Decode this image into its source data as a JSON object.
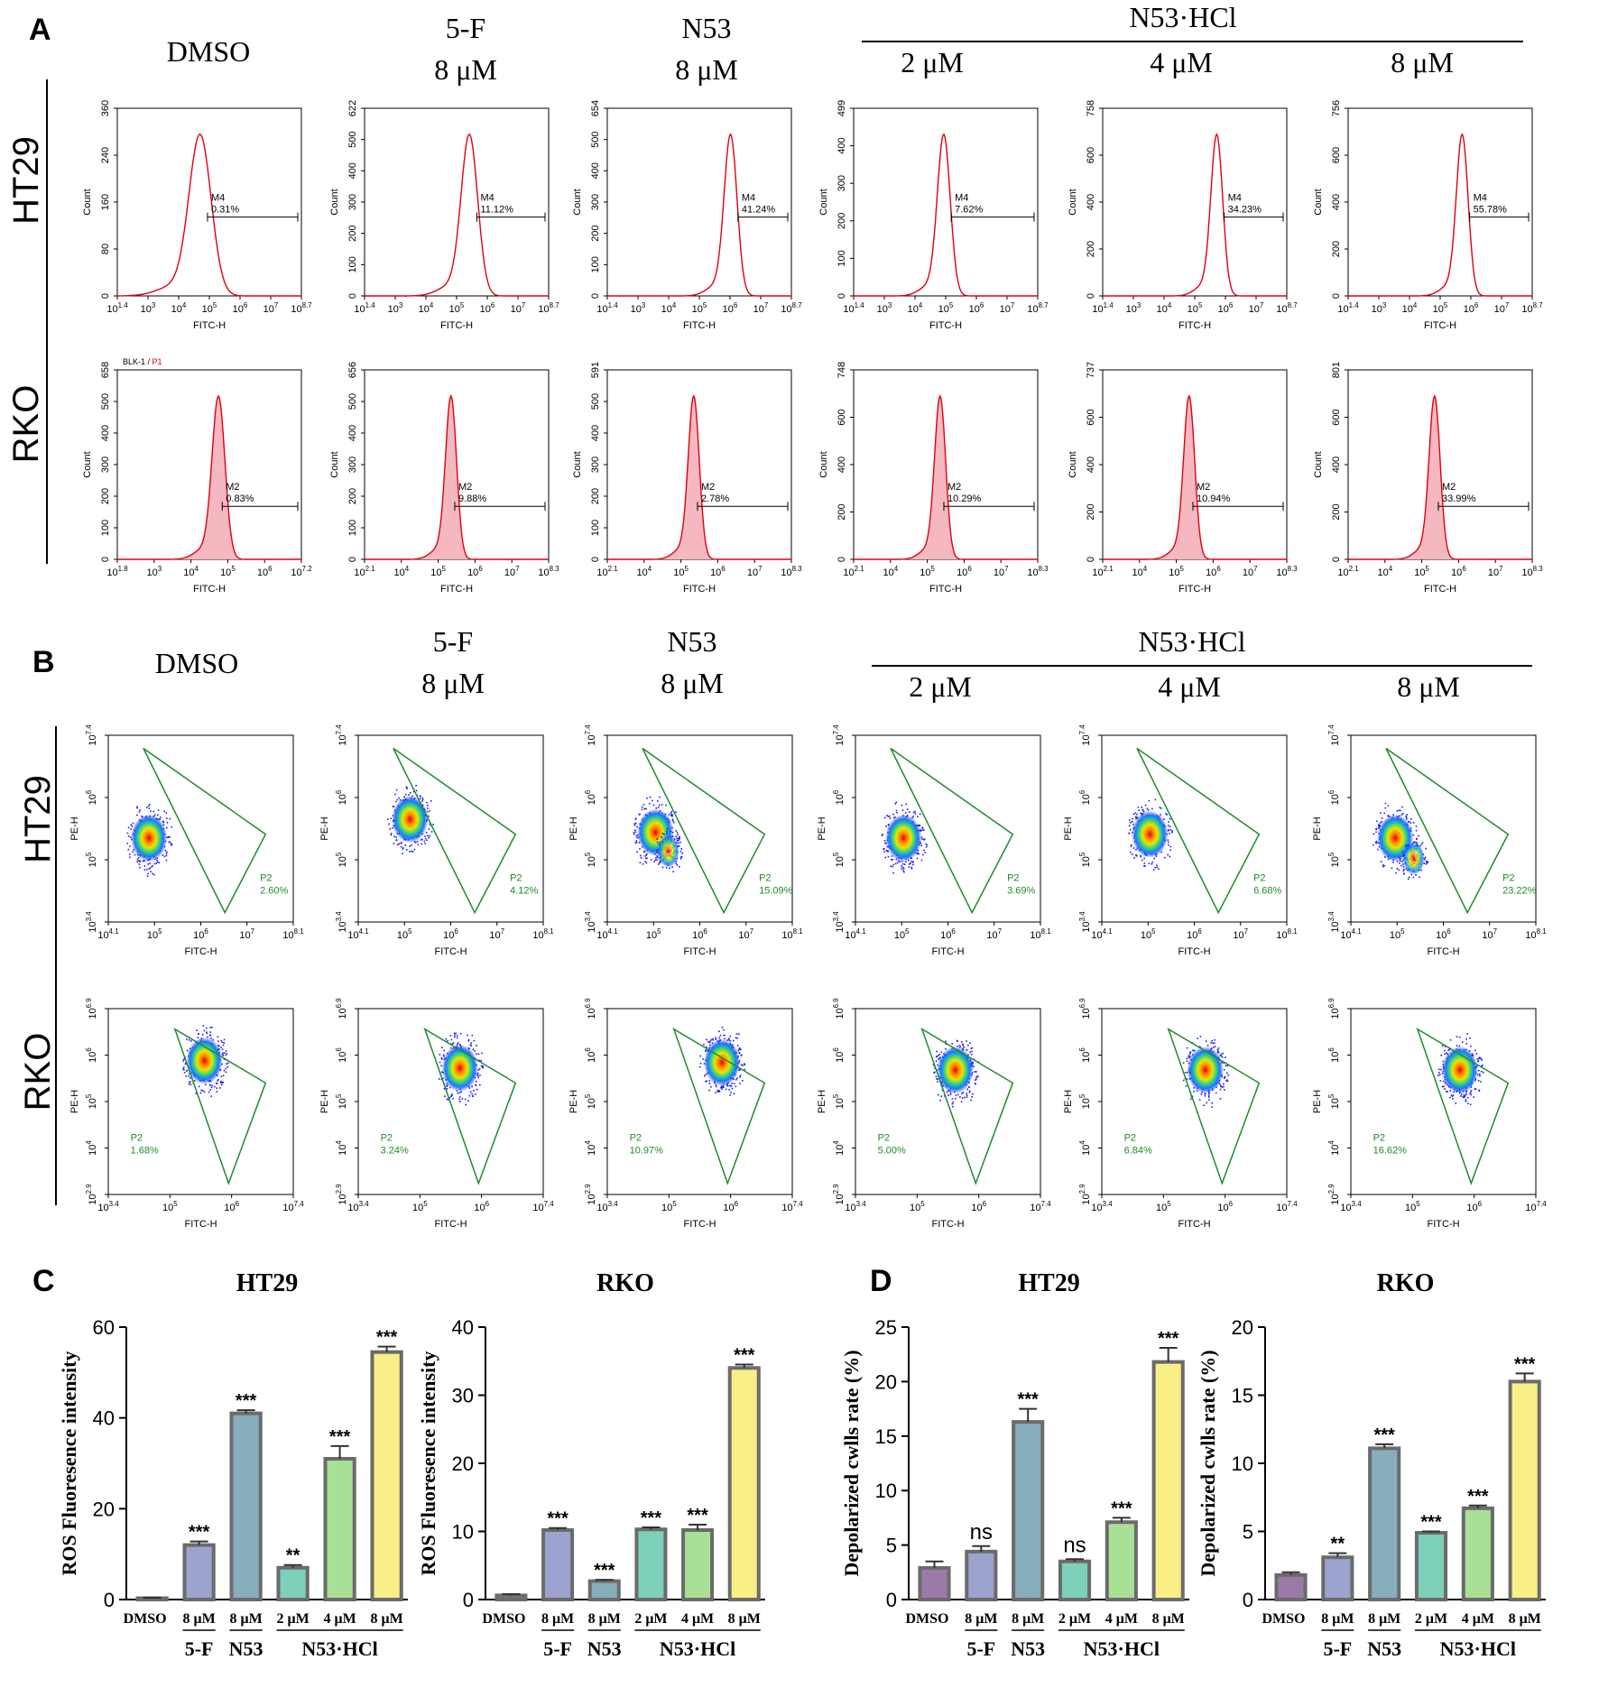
{
  "panel_letters": {
    "A": "A",
    "B": "B",
    "C": "C",
    "D": "D"
  },
  "colors": {
    "histogram_line": "#e0000f",
    "histogram_fill": "#f6b8c0",
    "gate_green": "#1e8c2a",
    "bar_colors": [
      "#9b7aa8",
      "#9da3cf",
      "#86aebc",
      "#7dd0b9",
      "#a8e095",
      "#f8ef86"
    ],
    "bar_border": "#6b6b6b"
  },
  "treatments": {
    "dmso": "DMSO",
    "fivef_name": "5-F",
    "fivef_dose": "8 μM",
    "n53_name": "N53",
    "n53_dose": "8 μM",
    "hcl_name": "N53·HCl",
    "hcl_doses": [
      "2 μM",
      "4 μM",
      "8 μM"
    ]
  },
  "cell_lines": [
    "HT29",
    "RKO"
  ],
  "panel_A": {
    "ht29": {
      "y_max": [
        "360",
        "622",
        "654",
        "499",
        "758",
        "756"
      ],
      "y_ticks": [
        [
          "0",
          "80",
          "160",
          "240",
          "360"
        ],
        [
          "0",
          "100",
          "200",
          "300",
          "400",
          "500",
          "622"
        ],
        [
          "0",
          "100",
          "200",
          "300",
          "400",
          "500",
          "654"
        ],
        [
          "0",
          "100",
          "200",
          "300",
          "400",
          "499"
        ],
        [
          "0",
          "200",
          "400",
          "600",
          "758"
        ],
        [
          "0",
          "200",
          "400",
          "600",
          "756"
        ]
      ],
      "x_ticks": [
        "10^1.4",
        "10^3",
        "10^4",
        "10^5",
        "10^6",
        "10^7",
        "10^8.7"
      ],
      "gate_name": "M4",
      "gate_pct": [
        "0.31%",
        "11.12%",
        "41.24%",
        "7.62%",
        "34.23%",
        "55.78%"
      ]
    },
    "rko": {
      "y_ticks": [
        [
          "0",
          "100",
          "200",
          "300",
          "400",
          "500",
          "658"
        ],
        [
          "0",
          "100",
          "200",
          "300",
          "400",
          "500",
          "656"
        ],
        [
          "0",
          "100",
          "200",
          "300",
          "400",
          "500",
          "591"
        ],
        [
          "0",
          "200",
          "400",
          "600",
          "748"
        ],
        [
          "0",
          "200",
          "400",
          "600",
          "737"
        ],
        [
          "0",
          "200",
          "400",
          "600",
          "801"
        ]
      ],
      "x_ticks_first": [
        "10^1.8",
        "10^3",
        "10^4",
        "10^5",
        "10^6",
        "10^7.2"
      ],
      "x_ticks": [
        "10^2.1",
        "10^4",
        "10^5",
        "10^6",
        "10^7",
        "10^8.3"
      ],
      "gate_name": "M2",
      "gate_pct": [
        "0.83%",
        "9.88%",
        "2.78%",
        "10.29%",
        "10.94%",
        "33.99%"
      ],
      "first_title_black": "BLK-1 / ",
      "first_title_red": "P1"
    },
    "x_label": "FITC-H",
    "y_label": "Count"
  },
  "panel_B": {
    "ht29": {
      "y_ticks": [
        "10^3.4",
        "10^5",
        "10^6",
        "10^7.4"
      ],
      "x_ticks": [
        "10^4.1",
        "10^5",
        "10^6",
        "10^7",
        "10^8.1"
      ],
      "gate_pct": [
        "2.60%",
        "4.12%",
        "15.09%",
        "3.69%",
        "6.68%",
        "23.22%"
      ]
    },
    "rko": {
      "y_ticks": [
        "10^2.9",
        "10^4",
        "10^5",
        "10^6",
        "10^6.9"
      ],
      "x_ticks": [
        "10^3.4",
        "10^5",
        "10^6",
        "10^7.4"
      ],
      "gate_pct": [
        "1.68%",
        "3.24%",
        "10.97%",
        "5.00%",
        "6.84%",
        "16.62%"
      ]
    },
    "gate_name": "P2",
    "x_label": "FITC-H",
    "y_label": "PE-H"
  },
  "chart_data": [
    {
      "type": "bar",
      "panel": "C",
      "title": "HT29",
      "ylabel": "ROS Fluoresence intensity",
      "ylim": [
        0,
        60
      ],
      "yticks": [
        "0",
        "20",
        "40",
        "60"
      ],
      "categories": [
        "DMSO",
        "8 μM",
        "8 μM",
        "2 μM",
        "4 μM",
        "8 μM"
      ],
      "groups": [
        "5-F",
        "N53",
        "N53·HCl"
      ],
      "values": [
        0.3,
        12.0,
        41.0,
        7.0,
        31.0,
        54.5
      ],
      "errors": [
        0.1,
        0.8,
        0.7,
        0.6,
        2.8,
        1.2
      ],
      "significance": [
        "",
        "***",
        "***",
        "**",
        "***",
        "***"
      ]
    },
    {
      "type": "bar",
      "panel": "C",
      "title": "RKO",
      "ylabel": "ROS Fluoresence intensity",
      "ylim": [
        0,
        40
      ],
      "yticks": [
        "0",
        "10",
        "20",
        "30",
        "40"
      ],
      "categories": [
        "DMSO",
        "8 μM",
        "8 μM",
        "2 μM",
        "4 μM",
        "8 μM"
      ],
      "groups": [
        "5-F",
        "N53",
        "N53·HCl"
      ],
      "values": [
        0.6,
        10.2,
        2.7,
        10.3,
        10.2,
        34.0
      ],
      "errors": [
        0.2,
        0.3,
        0.2,
        0.3,
        0.8,
        0.5
      ],
      "significance": [
        "",
        "***",
        "***",
        "***",
        "***",
        "***"
      ]
    },
    {
      "type": "bar",
      "panel": "D",
      "title": "HT29",
      "ylabel": "Depolarized cwlls rate (%)",
      "ylim": [
        0,
        25
      ],
      "yticks": [
        "0",
        "5",
        "10",
        "15",
        "20",
        "25"
      ],
      "categories": [
        "DMSO",
        "8 μM",
        "8 μM",
        "2 μM",
        "4 μM",
        "8 μM"
      ],
      "groups": [
        "5-F",
        "N53",
        "N53·HCl"
      ],
      "values": [
        2.9,
        4.4,
        16.3,
        3.5,
        7.1,
        21.8
      ],
      "errors": [
        0.6,
        0.5,
        1.2,
        0.2,
        0.4,
        1.3
      ],
      "significance": [
        "",
        "ns",
        "***",
        "ns",
        "***",
        "***"
      ]
    },
    {
      "type": "bar",
      "panel": "D",
      "title": "RKO",
      "ylabel": "Depolarized cwlls rate (%)",
      "ylim": [
        0,
        20
      ],
      "yticks": [
        "0",
        "5",
        "10",
        "15",
        "20"
      ],
      "categories": [
        "DMSO",
        "8 μM",
        "8 μM",
        "2 μM",
        "4 μM",
        "8 μM"
      ],
      "groups": [
        "5-F",
        "N53",
        "N53·HCl"
      ],
      "values": [
        1.8,
        3.1,
        11.1,
        4.9,
        6.7,
        16.0
      ],
      "errors": [
        0.2,
        0.3,
        0.3,
        0.1,
        0.2,
        0.6
      ],
      "significance": [
        "",
        "**",
        "***",
        "***",
        "***",
        "***"
      ]
    }
  ]
}
